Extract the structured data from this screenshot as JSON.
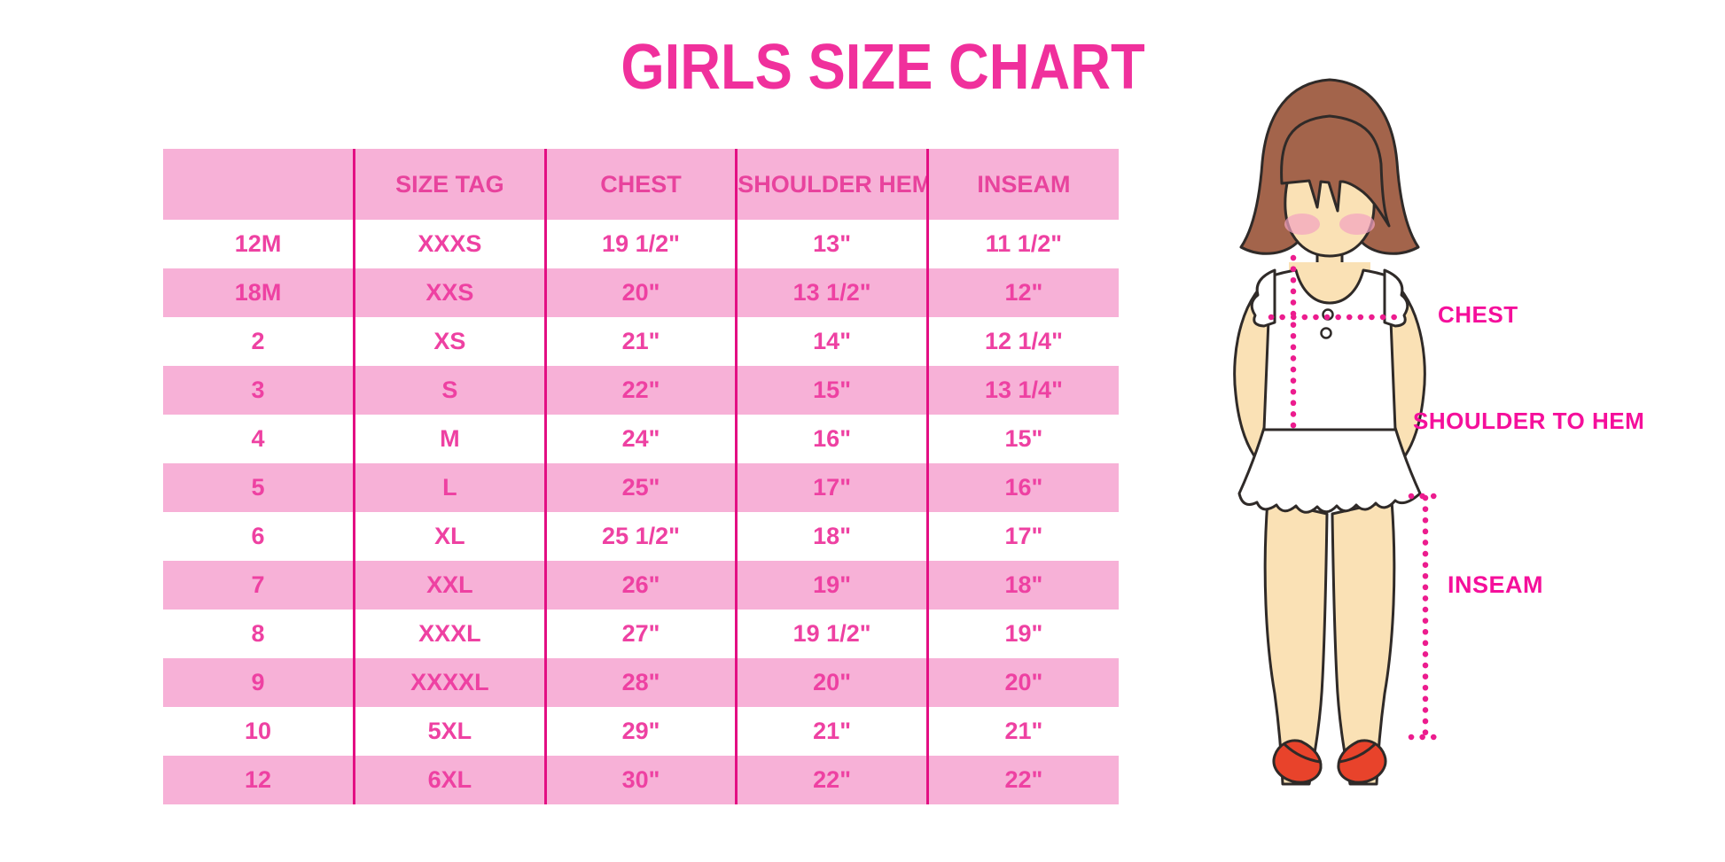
{
  "title": "GIRLS SIZE CHART",
  "chart_data": {
    "type": "table",
    "title": "GIRLS SIZE CHART",
    "columns": [
      "",
      "SIZE TAG",
      "CHEST",
      "SHOULDER HEM",
      "INSEAM"
    ],
    "rows": [
      [
        "12M",
        "XXXS",
        "19 1/2\"",
        "13\"",
        "11 1/2\""
      ],
      [
        "18M",
        "XXS",
        "20\"",
        "13 1/2\"",
        "12\""
      ],
      [
        "2",
        "XS",
        "21\"",
        "14\"",
        "12 1/4\""
      ],
      [
        "3",
        "S",
        "22\"",
        "15\"",
        "13 1/4\""
      ],
      [
        "4",
        "M",
        "24\"",
        "16\"",
        "15\""
      ],
      [
        "5",
        "L",
        "25\"",
        "17\"",
        "16\""
      ],
      [
        "6",
        "XL",
        "25 1/2\"",
        "18\"",
        "17\""
      ],
      [
        "7",
        "XXL",
        "26\"",
        "19\"",
        "18\""
      ],
      [
        "8",
        "XXXL",
        "27\"",
        "19 1/2\"",
        "19\""
      ],
      [
        "9",
        "XXXXL",
        "28\"",
        "20\"",
        "20\""
      ],
      [
        "10",
        "5XL",
        "29\"",
        "21\"",
        "21\""
      ],
      [
        "12",
        "6XL",
        "30\"",
        "22\"",
        "22\""
      ]
    ],
    "layout": {
      "grid": "alternating pink/white rows",
      "legend": "none"
    }
  },
  "figure": {
    "chest_label": "CHEST",
    "shoulder_to_hem_label": "SHOULDER TO HEM",
    "inseam_label": "INSEAM"
  },
  "colors": {
    "title_pink": "#F0309C",
    "row_pink": "#F7B1D7",
    "divider_magenta": "#E30F83",
    "cell_text_pink": "#EE41A2",
    "header_text_pink": "#E8439D",
    "dotted_line_magenta": "#EC1C8E",
    "label_magenta": "#F50F9B",
    "hair_brown": "#A3644B",
    "skin": "#FAE1B5",
    "cheek_pink": "#F2A3C0",
    "shoe_red": "#E8432B",
    "outline_dark": "#2F2A28"
  }
}
